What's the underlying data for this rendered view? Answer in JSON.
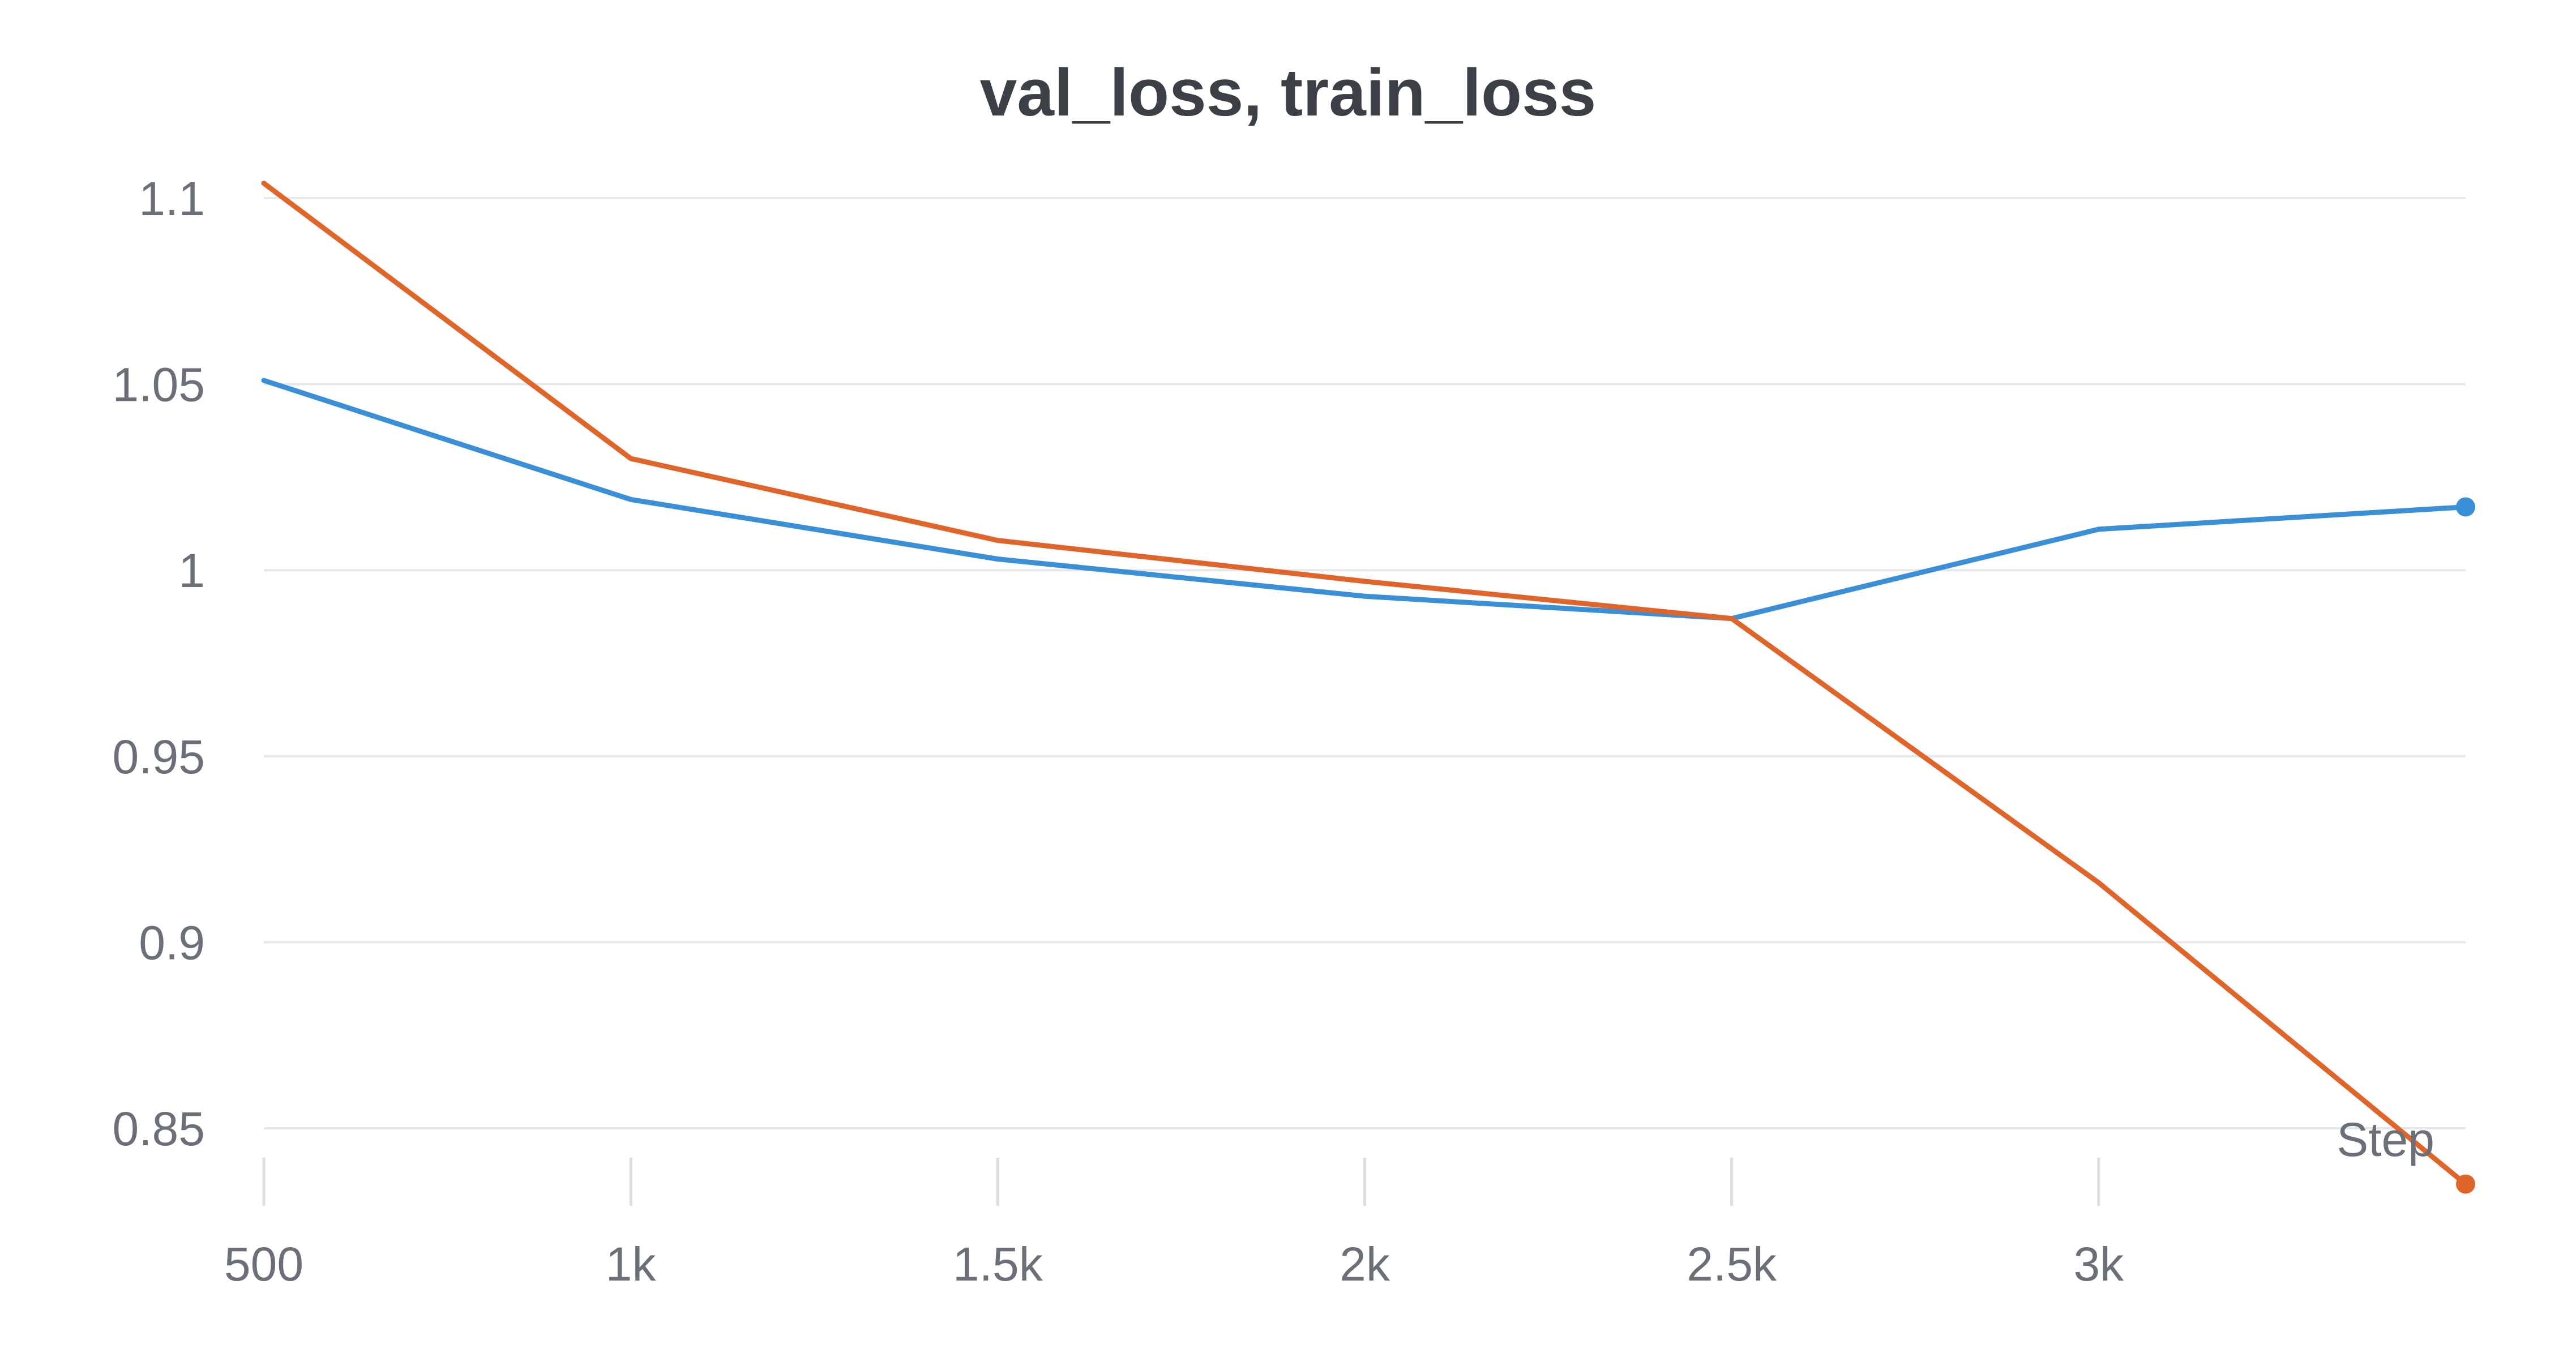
{
  "chart_data": {
    "type": "line",
    "title": "val_loss, train_loss",
    "xlabel": "Step",
    "ylabel": "",
    "x": [
      500,
      1000,
      1500,
      2000,
      2500,
      3000,
      3500
    ],
    "x_ticks": [
      500,
      1000,
      1500,
      2000,
      2500,
      3000
    ],
    "x_tick_labels": [
      "500",
      "1k",
      "1.5k",
      "2k",
      "2.5k",
      "3k"
    ],
    "y_ticks": [
      0.85,
      0.9,
      0.95,
      1.0,
      1.05,
      1.1
    ],
    "y_tick_labels": [
      "0.85",
      "0.9",
      "0.95",
      "1",
      "1.05",
      "1.1"
    ],
    "xlim": [
      500,
      3500
    ],
    "ylim": [
      0.835,
      1.104
    ],
    "grid": true,
    "series": [
      {
        "key": "val_loss",
        "color": "#3a8fd6",
        "values": [
          1.051,
          1.019,
          1.003,
          0.993,
          0.987,
          1.011,
          1.017
        ]
      },
      {
        "key": "train_loss",
        "color": "#e0652a",
        "values": [
          1.104,
          1.03,
          1.008,
          0.997,
          0.987,
          0.916,
          0.835
        ]
      }
    ]
  }
}
